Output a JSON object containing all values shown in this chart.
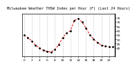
{
  "title": "Milwaukee Weather THSW Index per Hour (F) (Last 24 Hours)",
  "x_values": [
    0,
    1,
    2,
    3,
    4,
    5,
    6,
    7,
    8,
    9,
    10,
    11,
    12,
    13,
    14,
    15,
    16,
    17,
    18,
    19,
    20,
    21,
    22,
    23
  ],
  "y_values": [
    55,
    52,
    48,
    43,
    40,
    37,
    36,
    35,
    38,
    44,
    52,
    57,
    60,
    72,
    74,
    70,
    63,
    55,
    50,
    46,
    43,
    42,
    41,
    41
  ],
  "line_color": "#dd0000",
  "marker_color": "#000000",
  "bg_color": "#ffffff",
  "grid_color": "#888888",
  "ylim": [
    30,
    80
  ],
  "yticks": [
    40,
    45,
    50,
    55,
    60,
    65,
    70,
    75
  ],
  "xticks": [
    0,
    2,
    4,
    6,
    8,
    10,
    12,
    14,
    16,
    18,
    20,
    22
  ],
  "title_fontsize": 3.8,
  "tick_fontsize": 3.2
}
